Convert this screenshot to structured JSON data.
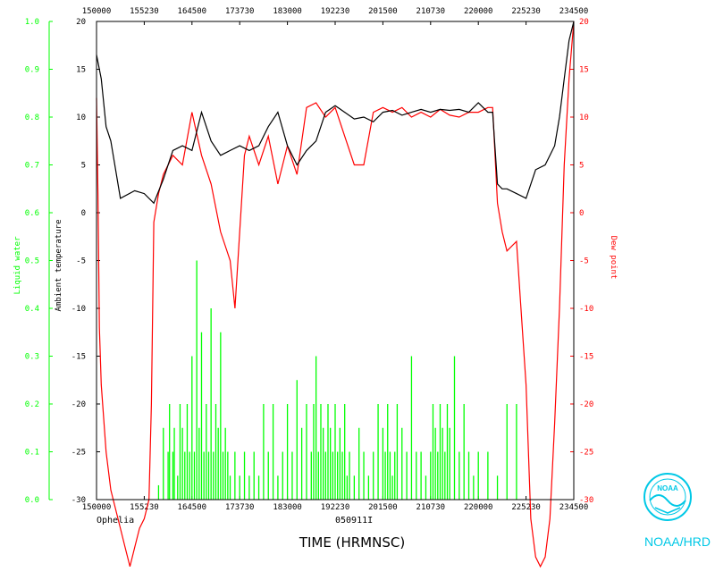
{
  "chart_data": {
    "type": "line",
    "title": "",
    "xlabel": "TIME (HRMNSC)",
    "x_ticks": [
      "150000",
      "155230",
      "164500",
      "173730",
      "183000",
      "192230",
      "201500",
      "210730",
      "220000",
      "225230",
      "234500"
    ],
    "left_axis_label": "Liquid water",
    "left_ticks": [
      "0.0",
      "0.1",
      "0.2",
      "0.3",
      "0.4",
      "0.5",
      "0.6",
      "0.7",
      "0.8",
      "0.9",
      "1.0"
    ],
    "left_ylim": [
      0,
      1
    ],
    "mid_axis_label": "Ambient temperature",
    "mid_ticks": [
      "-30",
      "-25",
      "-20",
      "-15",
      "-10",
      "-5",
      "0",
      "5",
      "10",
      "15",
      "20"
    ],
    "right_axis_label": "Dew point",
    "right_ticks": [
      "-30",
      "-25",
      "-20",
      "-15",
      "-10",
      "-5",
      "0",
      "5",
      "10",
      "15",
      "20"
    ],
    "temp_ylim": [
      -30,
      20
    ],
    "grid": false,
    "footer_left": "Ophelia",
    "footer_center": "050911I",
    "colors": {
      "temperature": "#000000",
      "dewpoint": "#ff0000",
      "liquid_water": "#00ff00"
    },
    "series": [
      {
        "key": "temperature",
        "x": [
          0,
          1,
          2,
          3,
          5,
          8,
          10,
          12,
          14,
          16,
          18,
          20,
          22,
          24,
          26,
          28,
          30,
          32,
          34,
          36,
          38,
          40,
          42,
          44,
          46,
          48,
          50,
          52,
          54,
          56,
          58,
          60,
          62,
          64,
          66,
          68,
          70,
          72,
          74,
          76,
          78,
          80,
          82,
          83,
          84,
          85,
          86,
          88,
          90,
          92,
          94,
          96,
          97,
          98,
          99,
          100
        ],
        "values": [
          16.5,
          14,
          9,
          7.5,
          1.5,
          2.3,
          2,
          1,
          3.5,
          6.5,
          7,
          6.5,
          10.5,
          7.5,
          6,
          6.5,
          7,
          6.5,
          7,
          9,
          10.5,
          7,
          5,
          6.5,
          7.5,
          10.5,
          11.2,
          10.5,
          9.8,
          10,
          9.5,
          10.5,
          10.7,
          10.2,
          10.5,
          10.8,
          10.5,
          10.8,
          10.7,
          10.8,
          10.5,
          11.5,
          10.5,
          10.5,
          3,
          2.5,
          2.5,
          2,
          1.5,
          4.5,
          5,
          7,
          10,
          14,
          18,
          20
        ]
      },
      {
        "key": "dewpoint",
        "x": [
          0,
          0.3,
          0.6,
          1,
          2,
          3,
          5,
          6,
          7,
          8,
          9,
          10,
          11,
          11.5,
          12,
          13,
          14,
          16,
          18,
          20,
          22,
          24,
          26,
          28,
          29,
          30,
          31,
          32,
          34,
          36,
          38,
          40,
          42,
          44,
          46,
          48,
          50,
          52,
          54,
          56,
          58,
          60,
          62,
          64,
          66,
          68,
          70,
          72,
          74,
          76,
          78,
          80,
          82,
          83,
          84,
          85,
          86,
          88,
          90,
          91,
          92,
          93,
          94,
          95,
          96,
          97,
          98,
          99,
          100
        ],
        "values": [
          12,
          2,
          -12,
          -18,
          -25,
          -29,
          -33,
          -35,
          -37,
          -35,
          -33,
          -32,
          -30,
          -20,
          -1,
          2,
          4,
          6,
          5,
          10.5,
          6,
          3,
          -2,
          -5,
          -10,
          -2,
          6,
          8,
          5,
          8,
          3,
          7,
          4,
          11,
          11.5,
          10,
          11,
          8,
          5,
          5,
          10.5,
          11,
          10.5,
          11,
          10,
          10.5,
          10,
          10.8,
          10.2,
          10,
          10.5,
          10.5,
          11,
          11,
          1,
          -2,
          -4,
          -3,
          -18,
          -32,
          -36,
          -37,
          -36,
          -32,
          -22,
          -10,
          5,
          14,
          20
        ]
      },
      {
        "key": "liquid_water",
        "x": [
          13,
          14,
          15,
          15.3,
          16,
          16.3,
          17,
          17.5,
          18,
          18.5,
          19,
          19.5,
          20,
          20.5,
          21,
          21.5,
          22,
          22.5,
          23,
          23.5,
          24,
          24.5,
          25,
          25.5,
          26,
          26.5,
          27,
          27.5,
          28,
          29,
          30,
          31,
          32,
          33,
          34,
          35,
          36,
          37,
          38,
          39,
          40,
          41,
          42,
          43,
          44,
          45,
          45.5,
          46,
          46.5,
          47,
          47.5,
          48,
          48.5,
          49,
          49.5,
          50,
          50.5,
          51,
          51.5,
          52,
          52.5,
          53,
          54,
          55,
          56,
          57,
          58,
          59,
          60,
          60.5,
          61,
          61.5,
          62,
          62.5,
          63,
          64,
          65,
          66,
          67,
          68,
          69,
          70,
          70.5,
          71,
          71.5,
          72,
          72.5,
          73,
          73.5,
          74,
          75,
          76,
          77,
          78,
          79,
          80,
          82,
          84,
          86,
          88
        ],
        "values": [
          0.03,
          0.15,
          0.1,
          0.2,
          0.1,
          0.15,
          0.05,
          0.2,
          0.15,
          0.1,
          0.2,
          0.1,
          0.3,
          0.1,
          0.5,
          0.15,
          0.35,
          0.1,
          0.2,
          0.1,
          0.4,
          0.1,
          0.2,
          0.15,
          0.35,
          0.1,
          0.15,
          0.1,
          0.05,
          0.1,
          0.05,
          0.1,
          0.05,
          0.1,
          0.05,
          0.2,
          0.1,
          0.2,
          0.05,
          0.1,
          0.2,
          0.1,
          0.25,
          0.15,
          0.2,
          0.1,
          0.2,
          0.3,
          0.1,
          0.2,
          0.15,
          0.1,
          0.2,
          0.15,
          0.1,
          0.2,
          0.1,
          0.15,
          0.1,
          0.2,
          0.05,
          0.1,
          0.05,
          0.15,
          0.1,
          0.05,
          0.1,
          0.2,
          0.15,
          0.1,
          0.2,
          0.1,
          0.05,
          0.1,
          0.2,
          0.15,
          0.1,
          0.3,
          0.1,
          0.1,
          0.05,
          0.1,
          0.2,
          0.15,
          0.1,
          0.2,
          0.15,
          0.1,
          0.2,
          0.15,
          0.3,
          0.1,
          0.2,
          0.1,
          0.05,
          0.1,
          0.1,
          0.05,
          0.2,
          0.2
        ]
      }
    ]
  },
  "branding": {
    "logo_text": "NOAA",
    "org_label": "NOAA/HRD"
  }
}
